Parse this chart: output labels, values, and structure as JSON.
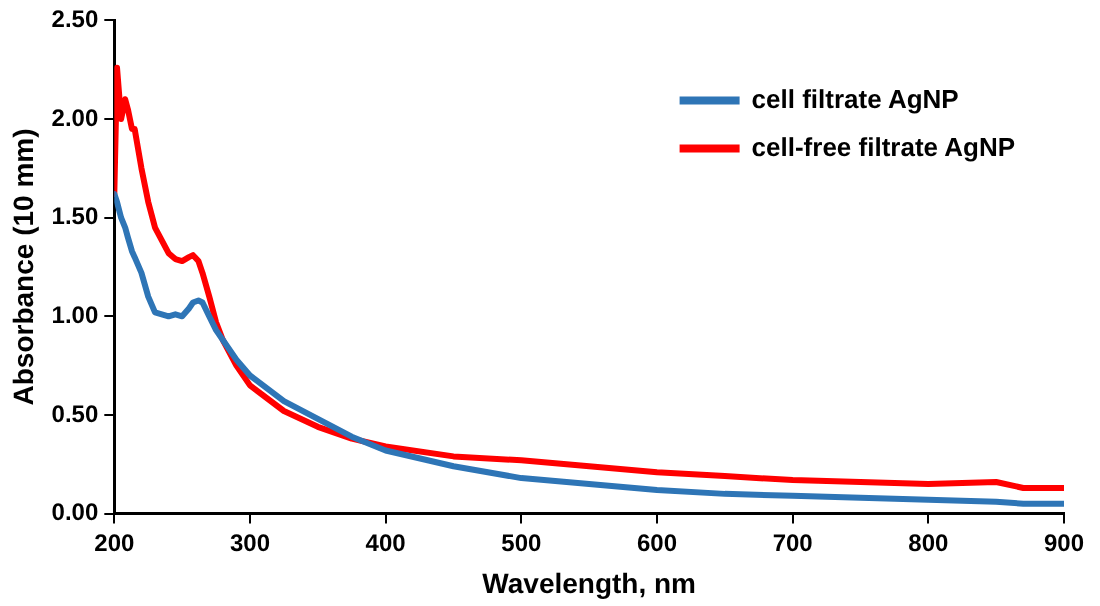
{
  "chart_data": {
    "type": "line",
    "xlabel": "Wavelength, nm",
    "ylabel": "Absorbance (10 mm)",
    "x": [
      200,
      202,
      205,
      208,
      210,
      213,
      215,
      220,
      225,
      230,
      240,
      245,
      250,
      255,
      258,
      262,
      265,
      270,
      275,
      280,
      290,
      300,
      325,
      350,
      375,
      400,
      450,
      500,
      550,
      600,
      650,
      700,
      750,
      800,
      850,
      870,
      900
    ],
    "series": [
      {
        "name": "cell filtrate AgNP",
        "color": "#2e75b6",
        "values": [
          1.62,
          1.58,
          1.5,
          1.45,
          1.4,
          1.33,
          1.3,
          1.22,
          1.1,
          1.02,
          1.0,
          1.01,
          1.0,
          1.04,
          1.07,
          1.08,
          1.07,
          1.0,
          0.93,
          0.88,
          0.78,
          0.7,
          0.57,
          0.48,
          0.39,
          0.32,
          0.24,
          0.18,
          0.15,
          0.12,
          0.1,
          0.09,
          0.08,
          0.07,
          0.06,
          0.05,
          0.05
        ]
      },
      {
        "name": "cell-free filtrate AgNP",
        "color": "#ff0000",
        "values": [
          1.62,
          2.26,
          2.0,
          2.1,
          2.05,
          1.95,
          1.95,
          1.75,
          1.58,
          1.45,
          1.32,
          1.29,
          1.28,
          1.3,
          1.31,
          1.28,
          1.22,
          1.1,
          0.97,
          0.88,
          0.75,
          0.65,
          0.52,
          0.44,
          0.38,
          0.34,
          0.29,
          0.27,
          0.24,
          0.21,
          0.19,
          0.17,
          0.16,
          0.15,
          0.16,
          0.13,
          0.13
        ]
      }
    ],
    "xlim": [
      200,
      900
    ],
    "xticks": [
      200,
      300,
      400,
      500,
      600,
      700,
      800,
      900
    ],
    "ylim": [
      0,
      2.5
    ],
    "yticks": [
      {
        "value": 0,
        "label": "0.00"
      },
      {
        "value": 0.5,
        "label": "0.50"
      },
      {
        "value": 1,
        "label": "1.00"
      },
      {
        "value": 1.5,
        "label": "1.50"
      },
      {
        "value": 2,
        "label": "2.00"
      },
      {
        "value": 2.5,
        "label": "2.50"
      }
    ],
    "grid": false,
    "legend": "top right",
    "marker": "none",
    "line_style": "solid"
  }
}
